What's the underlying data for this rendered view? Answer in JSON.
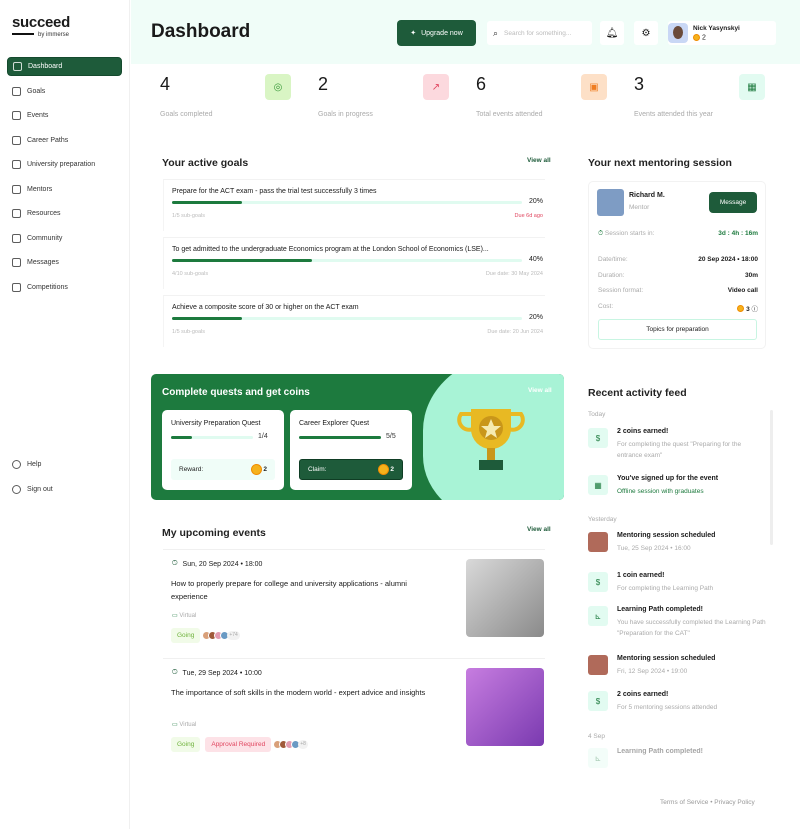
{
  "brand": {
    "name": "succeed",
    "by": "by immerse"
  },
  "sidebar": {
    "items": [
      {
        "label": "Dashboard",
        "icon": "home-icon",
        "active": true
      },
      {
        "label": "Goals",
        "icon": "target-icon"
      },
      {
        "label": "Events",
        "icon": "calendar-icon"
      },
      {
        "label": "Career Paths",
        "icon": "briefcase-icon"
      },
      {
        "label": "University preparation",
        "icon": "document-icon"
      },
      {
        "label": "Mentors",
        "icon": "graduation-cap-icon"
      },
      {
        "label": "Resources",
        "icon": "resources-icon"
      },
      {
        "label": "Community",
        "icon": "users-icon"
      },
      {
        "label": "Messages",
        "icon": "mail-icon"
      },
      {
        "label": "Competitions",
        "icon": "trophy-icon"
      }
    ],
    "bottom": [
      {
        "label": "Help",
        "icon": "help-icon"
      },
      {
        "label": "Sign out",
        "icon": "sign-out-icon"
      }
    ]
  },
  "header": {
    "title": "Dashboard",
    "upgrade": "Upgrade now",
    "search_placeholder": "Search for something...",
    "user_name": "Nick Yasynskyi",
    "coins": "2"
  },
  "stats": [
    {
      "value": "4",
      "label": "Goals completed",
      "color": "#d9f5c4"
    },
    {
      "value": "2",
      "label": "Goals in progress",
      "color": "#fcd9de"
    },
    {
      "value": "6",
      "label": "Total events attended",
      "color": "#fde0c7"
    },
    {
      "value": "3",
      "label": "Events attended this year",
      "color": "#e2fbf1"
    }
  ],
  "goals": {
    "title": "Your active goals",
    "view_all": "View all",
    "items": [
      {
        "title": "Prepare for the ACT exam - pass the trial test successfully 3 times",
        "percent": 20,
        "pct_label": "20%",
        "sub": "1/5 sub-goals",
        "due": "Due 6d ago",
        "overdue": true
      },
      {
        "title": "To get admitted to the undergraduate Economics program at the London School of Economics (LSE)...",
        "percent": 40,
        "pct_label": "40%",
        "sub": "4/10 sub-goals",
        "due": "Due date: 30 May 2024"
      },
      {
        "title": "Achieve a composite score of 30 or higher on the ACT exam",
        "percent": 20,
        "pct_label": "20%",
        "sub": "1/5 sub-goals",
        "due": "Due date: 20 Jun 2024"
      }
    ]
  },
  "quests": {
    "title": "Complete quests and get coins",
    "view_all": "View all",
    "items": [
      {
        "title": "University Preparation Quest",
        "progress": "1/4",
        "fraction": 0.25,
        "action": "Reward:",
        "coins": "2"
      },
      {
        "title": "Career Explorer Quest",
        "progress": "5/5",
        "fraction": 1,
        "action": "Claim:",
        "coins": "2"
      }
    ]
  },
  "events": {
    "title": "My upcoming events",
    "view_all": "View all",
    "items": [
      {
        "date": "Sun, 20 Sep 2024 • 18:00",
        "title": "How to properly prepare for college and university applications - alumni experience",
        "format": "Virtual",
        "status": "Going",
        "extra_tag": "",
        "attendees": "+74"
      },
      {
        "date": "Tue, 29 Sep 2024 • 10:00",
        "title": "The importance of soft skills in the modern world - expert advice and insights",
        "format": "Virtual",
        "status": "Going",
        "extra_tag": "Approval Required",
        "attendees": "+8"
      }
    ]
  },
  "mentoring": {
    "title": "Your next mentoring session",
    "name": "Richard M.",
    "role": "Mentor",
    "message": "Message",
    "starts_label": "Session starts in:",
    "starts_value": "3d : 4h : 16m",
    "rows": [
      {
        "k": "Date/time:",
        "v": "20 Sep 2024 • 18:00"
      },
      {
        "k": "Duration:",
        "v": "30m"
      },
      {
        "k": "Session format:",
        "v": "Video call"
      },
      {
        "k": "Cost:",
        "v": "3"
      }
    ],
    "topics": "Topics for preparation"
  },
  "feed": {
    "title": "Recent activity feed",
    "groups": [
      "Today",
      "Yesterday",
      "4 Sep"
    ],
    "items": [
      {
        "title": "2 coins earned!",
        "sub": "For completing the quest \"Preparing for the entrance exam\"",
        "icon": "coin-icon"
      },
      {
        "title": "You've signed up for the event",
        "sub": "Offline session with graduates",
        "icon": "calendar-icon"
      },
      {
        "title": "Mentoring session scheduled",
        "sub": "Tue, 25 Sep 2024 • 16:00",
        "icon": "avatar"
      },
      {
        "title": "1 coin earned!",
        "sub": "For completing the Learning Path",
        "icon": "coin-icon"
      },
      {
        "title": "Learning Path completed!",
        "sub": "You have successfully completed the Learning Path \"Preparation for the CAT\"",
        "icon": "path-icon"
      },
      {
        "title": "Mentoring session scheduled",
        "sub": "Fri, 12 Sep 2024 • 19:00",
        "icon": "avatar"
      },
      {
        "title": "2 coins earned!",
        "sub": "For 5 mentoring sessions attended",
        "icon": "coin-icon"
      },
      {
        "title": "Learning Path completed!",
        "sub": "",
        "icon": "path-icon"
      }
    ]
  },
  "footer": {
    "terms": "Terms of Service",
    "privacy": "Privacy Policy"
  }
}
